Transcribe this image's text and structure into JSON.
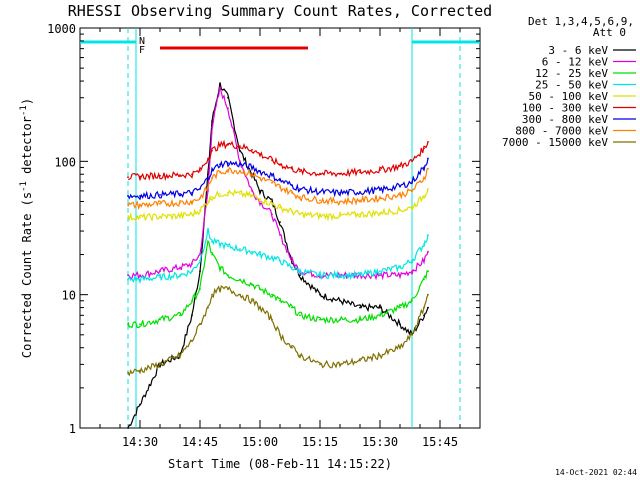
{
  "chart_data": {
    "type": "line",
    "title": "RHESSI Observing Summary Count Rates, Corrected",
    "xlabel": "Start Time (08-Feb-11 14:15:22)",
    "ylabel_main": "Corrected Count Rate (s",
    "ylabel_sup1": "-1",
    "ylabel_mid": " detector",
    "ylabel_sup2": "-1",
    "ylabel_end": ")",
    "xscale": "linear",
    "yscale": "log",
    "xlim": [
      "14:15",
      "15:55"
    ],
    "ylim": [
      1,
      1000
    ],
    "x_ticks": [
      "14:30",
      "14:45",
      "15:00",
      "15:15",
      "15:30",
      "15:45"
    ],
    "y_ticks": [
      "1",
      "10",
      "100",
      "1000"
    ],
    "legend_position": "right",
    "legend_header": [
      "Det 1,3,4,5,6,9,",
      "Att 0"
    ],
    "timestamp": "14-Oct-2021 02:44",
    "markers": {
      "night_label": "N",
      "flare_label": "F",
      "night_color": "#00e5e5",
      "flare_color": "#e00000",
      "night_intervals": [
        [
          "14:15",
          "14:29"
        ],
        [
          "15:38",
          "15:55"
        ]
      ],
      "saa_lines": [
        "14:27",
        "15:50"
      ],
      "data_gap_lines": [
        "14:29",
        "15:38"
      ],
      "flare_interval": [
        "14:35",
        "15:12"
      ]
    },
    "x": [
      "14:27",
      "14:30",
      "14:35",
      "14:40",
      "14:43",
      "14:45",
      "14:47",
      "14:48",
      "14:50",
      "14:52",
      "14:55",
      "14:58",
      "15:00",
      "15:03",
      "15:05",
      "15:08",
      "15:10",
      "15:15",
      "15:20",
      "15:25",
      "15:30",
      "15:35",
      "15:38",
      "15:41",
      "15:42"
    ],
    "series": [
      {
        "name": "3 - 6 keV",
        "color": "#000000",
        "values": [
          1,
          1.5,
          3,
          3.5,
          7,
          15,
          80,
          200,
          380,
          300,
          120,
          80,
          60,
          50,
          35,
          18,
          14,
          10,
          9,
          8,
          8,
          6,
          5,
          7,
          8
        ]
      },
      {
        "name": "6 - 12 keV",
        "color": "#e000e0",
        "values": [
          14,
          14,
          15,
          16,
          17,
          20,
          60,
          180,
          350,
          250,
          100,
          60,
          50,
          40,
          28,
          18,
          15,
          14,
          14,
          14,
          14,
          14,
          15,
          18,
          21
        ]
      },
      {
        "name": "12 - 25 keV",
        "color": "#00e000",
        "values": [
          6,
          6,
          6.5,
          7,
          9,
          11,
          25,
          20,
          16,
          14,
          13,
          12,
          11,
          10,
          9,
          8,
          7,
          6.5,
          6.5,
          6.5,
          7,
          8,
          9,
          13,
          15
        ]
      },
      {
        "name": "25 - 50 keV",
        "color": "#00e5e5",
        "values": [
          13,
          13,
          13.5,
          14,
          15,
          18,
          30,
          25,
          24,
          23,
          22,
          21,
          20,
          19,
          18,
          16,
          15,
          14,
          14,
          14,
          15,
          16,
          18,
          24,
          28
        ]
      },
      {
        "name": "50 - 100 keV",
        "color": "#e0e000",
        "values": [
          38,
          38,
          38.5,
          39,
          40,
          43,
          50,
          54,
          57,
          58,
          57,
          55,
          52,
          48,
          45,
          42,
          40,
          39,
          39,
          40,
          41,
          43,
          45,
          55,
          62
        ]
      },
      {
        "name": "100 - 300 keV",
        "color": "#e00000",
        "values": [
          76,
          77,
          78,
          79,
          80,
          85,
          105,
          120,
          132,
          135,
          130,
          122,
          113,
          102,
          95,
          88,
          84,
          81,
          81,
          83,
          86,
          92,
          100,
          125,
          140
        ]
      },
      {
        "name": "300 - 800 keV",
        "color": "#0000e0",
        "values": [
          55,
          55,
          56,
          57,
          58,
          62,
          75,
          85,
          95,
          97,
          95,
          90,
          84,
          78,
          72,
          66,
          62,
          59,
          58,
          59,
          61,
          65,
          70,
          90,
          105
        ]
      },
      {
        "name": "800 - 7000 keV",
        "color": "#ff8000",
        "values": [
          47,
          47,
          48,
          49,
          50,
          53,
          64,
          75,
          83,
          86,
          85,
          80,
          75,
          69,
          64,
          58,
          54,
          51,
          50,
          51,
          53,
          56,
          60,
          75,
          88
        ]
      },
      {
        "name": "7000 - 15000 keV",
        "color": "#807000",
        "values": [
          2.6,
          2.7,
          3,
          3.5,
          4.5,
          6,
          8,
          10,
          11,
          11,
          10,
          9,
          8,
          6.5,
          5,
          4,
          3.5,
          3,
          3,
          3.2,
          3.5,
          4,
          5,
          8,
          10
        ]
      }
    ]
  }
}
